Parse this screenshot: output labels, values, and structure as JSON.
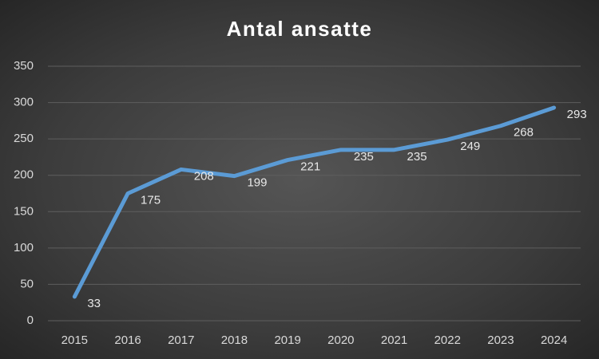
{
  "chart_data": {
    "type": "line",
    "title": "Antal ansatte",
    "categories": [
      "2015",
      "2016",
      "2017",
      "2018",
      "2019",
      "2020",
      "2021",
      "2022",
      "2023",
      "2024"
    ],
    "series": [
      {
        "name": "Antal ansatte",
        "color": "#5b9bd5",
        "values": [
          33,
          175,
          208,
          199,
          221,
          235,
          235,
          249,
          268,
          293
        ]
      }
    ],
    "ylim": [
      0,
      350
    ],
    "yticks": [
      0,
      50,
      100,
      150,
      200,
      250,
      300,
      350
    ],
    "grid": true
  }
}
